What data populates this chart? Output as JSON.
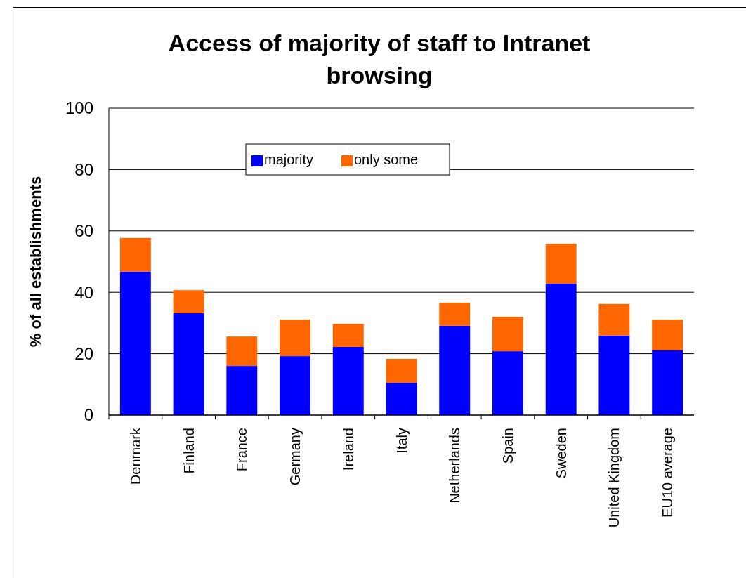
{
  "chart_data": {
    "type": "bar",
    "title": "Access of majority of staff to Intranet browsing",
    "ylabel": "% of all establishments",
    "categories": [
      "Denmark",
      "Finland",
      "France",
      "Germany",
      "Ireland",
      "Italy",
      "Netherlands",
      "Spain",
      "Sweden",
      "United Kingdom",
      "EU10 average"
    ],
    "stacked": true,
    "series": [
      {
        "name": "majority",
        "color": "#0000ff",
        "values": [
          46.7,
          33.2,
          16.0,
          19.2,
          22.2,
          10.5,
          29.1,
          20.8,
          42.8,
          25.9,
          21.1
        ]
      },
      {
        "name": "only some",
        "color": "#ff6600",
        "values": [
          11.0,
          7.5,
          9.6,
          11.9,
          7.5,
          7.8,
          7.5,
          11.2,
          13.0,
          10.3,
          10.0
        ]
      }
    ],
    "ylim": [
      0,
      100
    ],
    "yticks": [
      0,
      20,
      40,
      60,
      80,
      100
    ],
    "grid": "y",
    "legend": "top"
  }
}
